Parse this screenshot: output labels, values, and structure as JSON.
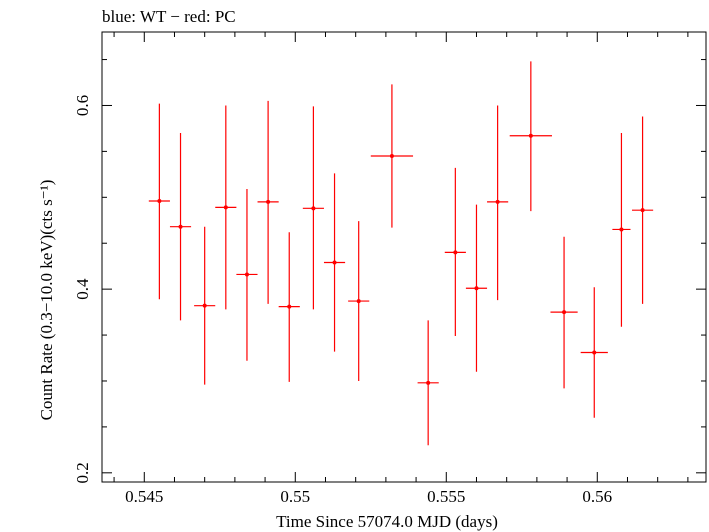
{
  "chart_data": {
    "type": "scatter",
    "title": "blue: WT − red: PC",
    "xlabel": "Time Since 57074.0 MJD (days)",
    "ylabel": "Count Rate (0.3−10.0 keV)(cts s⁻¹)",
    "xlim": [
      0.5436,
      0.5636
    ],
    "ylim": [
      0.19,
      0.68
    ],
    "x_ticks": [
      {
        "value": 0.545,
        "label": "0.545"
      },
      {
        "value": 0.55,
        "label": "0.55"
      },
      {
        "value": 0.555,
        "label": "0.555"
      },
      {
        "value": 0.56,
        "label": "0.56"
      }
    ],
    "y_ticks": [
      {
        "value": 0.2,
        "label": "0.2"
      },
      {
        "value": 0.4,
        "label": "0.4"
      },
      {
        "value": 0.6,
        "label": "0.6"
      }
    ],
    "grid": false,
    "series": [
      {
        "color": "#ff0000",
        "points": [
          {
            "x": 0.5455,
            "xerr": 0.00035,
            "y": 0.496,
            "ylo": 0.389,
            "yhi": 0.602
          },
          {
            "x": 0.5462,
            "xerr": 0.00035,
            "y": 0.468,
            "ylo": 0.366,
            "yhi": 0.57
          },
          {
            "x": 0.547,
            "xerr": 0.00035,
            "y": 0.382,
            "ylo": 0.296,
            "yhi": 0.468
          },
          {
            "x": 0.5477,
            "xerr": 0.00035,
            "y": 0.489,
            "ylo": 0.378,
            "yhi": 0.6
          },
          {
            "x": 0.5484,
            "xerr": 0.00035,
            "y": 0.416,
            "ylo": 0.322,
            "yhi": 0.509
          },
          {
            "x": 0.5491,
            "xerr": 0.00035,
            "y": 0.495,
            "ylo": 0.384,
            "yhi": 0.605
          },
          {
            "x": 0.5498,
            "xerr": 0.00035,
            "y": 0.381,
            "ylo": 0.299,
            "yhi": 0.462
          },
          {
            "x": 0.5506,
            "xerr": 0.00035,
            "y": 0.488,
            "ylo": 0.378,
            "yhi": 0.599
          },
          {
            "x": 0.5513,
            "xerr": 0.00035,
            "y": 0.429,
            "ylo": 0.332,
            "yhi": 0.526
          },
          {
            "x": 0.5521,
            "xerr": 0.00035,
            "y": 0.387,
            "ylo": 0.3,
            "yhi": 0.474
          },
          {
            "x": 0.5532,
            "xerr": 0.0007,
            "y": 0.545,
            "ylo": 0.467,
            "yhi": 0.623
          },
          {
            "x": 0.5544,
            "xerr": 0.00035,
            "y": 0.298,
            "ylo": 0.23,
            "yhi": 0.366
          },
          {
            "x": 0.5553,
            "xerr": 0.00035,
            "y": 0.44,
            "ylo": 0.349,
            "yhi": 0.532
          },
          {
            "x": 0.556,
            "xerr": 0.00035,
            "y": 0.401,
            "ylo": 0.31,
            "yhi": 0.492
          },
          {
            "x": 0.5567,
            "xerr": 0.00035,
            "y": 0.495,
            "ylo": 0.388,
            "yhi": 0.6
          },
          {
            "x": 0.5578,
            "xerr": 0.0007,
            "y": 0.567,
            "ylo": 0.485,
            "yhi": 0.648
          },
          {
            "x": 0.5589,
            "xerr": 0.00045,
            "y": 0.375,
            "ylo": 0.292,
            "yhi": 0.457
          },
          {
            "x": 0.5599,
            "xerr": 0.00045,
            "y": 0.331,
            "ylo": 0.26,
            "yhi": 0.402
          },
          {
            "x": 0.5608,
            "xerr": 0.0003,
            "y": 0.465,
            "ylo": 0.359,
            "yhi": 0.57
          },
          {
            "x": 0.5615,
            "xerr": 0.00035,
            "y": 0.486,
            "ylo": 0.384,
            "yhi": 0.588
          }
        ]
      }
    ]
  }
}
